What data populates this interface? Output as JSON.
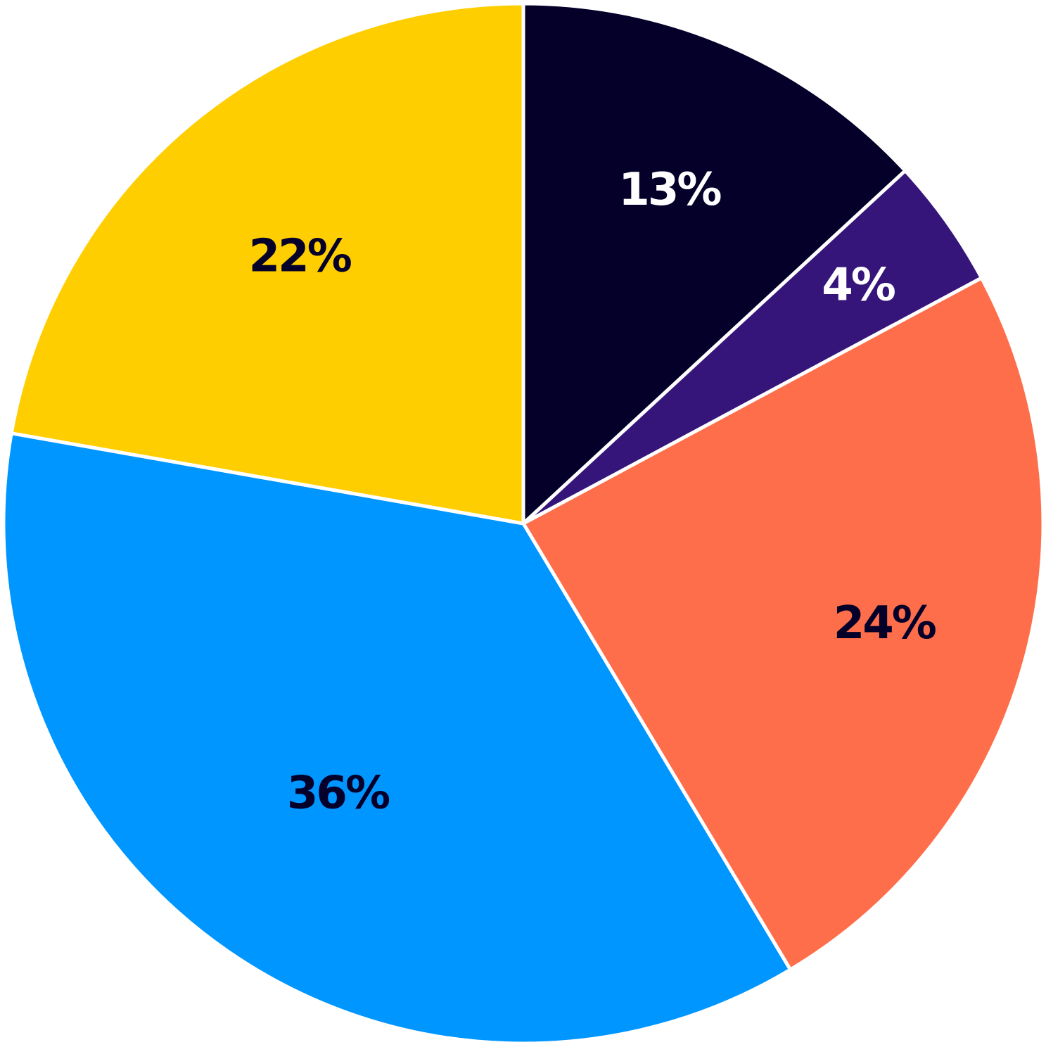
{
  "chart_data": {
    "type": "pie",
    "start_angle_deg": 0,
    "direction": "clockwise",
    "slices": [
      {
        "value": 13,
        "label": "13%",
        "color": "#05002A",
        "label_color": "#FFFFFF"
      },
      {
        "value": 4,
        "label": "4%",
        "color": "#36157A",
        "label_color": "#FFFFFF"
      },
      {
        "value": 24,
        "label": "24%",
        "color": "#FF6E4A",
        "label_color": "#05002A"
      },
      {
        "value": 36,
        "label": "36%",
        "color": "#0096FF",
        "label_color": "#05002A"
      },
      {
        "value": 22,
        "label": "22%",
        "color": "#FFCE00",
        "label_color": "#05002A"
      }
    ],
    "legend": "none",
    "grid": false
  }
}
